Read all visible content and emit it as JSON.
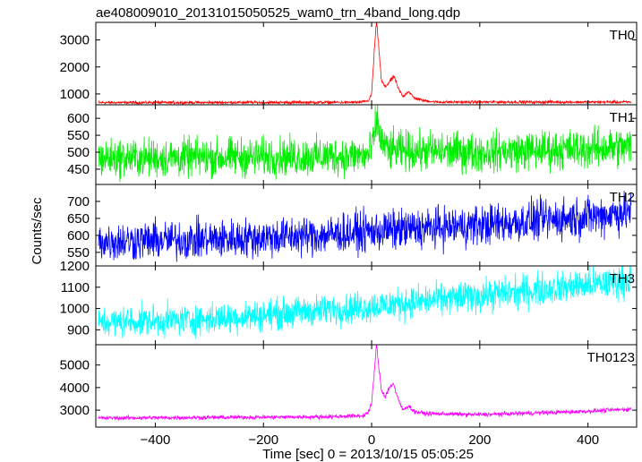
{
  "chart_data": {
    "type": "line",
    "title": "ae408009010_20131015050525_wam0_trn_4band_long.qdp",
    "xlabel": "Time [sec] 0 = 2013/10/15 05:05:25",
    "ylabel": "Counts/sec",
    "xlim": [
      -510,
      490
    ],
    "x_ticks": [
      -400,
      -200,
      0,
      200,
      400
    ],
    "x_tick_labels": [
      "−400",
      "−200",
      "0",
      "200",
      "400"
    ],
    "legend": "none",
    "grid": false,
    "panels": [
      {
        "name": "TH0",
        "color": "#ff0000",
        "ylim": [
          600,
          3650
        ],
        "y_ticks": [
          1000,
          2000,
          3000
        ],
        "y_tick_labels": [
          "1000",
          "2000",
          "3000"
        ],
        "profile": [
          [
            -505,
            680
          ],
          [
            -20,
            690
          ],
          [
            -5,
            760
          ],
          [
            0,
            1000
          ],
          [
            5,
            2600
          ],
          [
            9,
            3700
          ],
          [
            13,
            2800
          ],
          [
            18,
            1500
          ],
          [
            25,
            1250
          ],
          [
            35,
            1500
          ],
          [
            42,
            1650
          ],
          [
            48,
            1250
          ],
          [
            58,
            900
          ],
          [
            68,
            1100
          ],
          [
            78,
            860
          ],
          [
            95,
            760
          ],
          [
            120,
            700
          ],
          [
            480,
            700
          ]
        ],
        "noise": 25
      },
      {
        "name": "TH1",
        "color": "#00ee00",
        "ylim": [
          405,
          640
        ],
        "y_ticks": [
          450,
          500,
          550,
          600
        ],
        "y_tick_labels": [
          "450",
          "500",
          "550",
          "600"
        ],
        "profile": [
          [
            -505,
            482
          ],
          [
            -200,
            486
          ],
          [
            -5,
            490
          ],
          [
            5,
            545
          ],
          [
            10,
            600
          ],
          [
            16,
            540
          ],
          [
            30,
            505
          ],
          [
            200,
            500
          ],
          [
            480,
            515
          ]
        ],
        "noise": 28
      },
      {
        "name": "TH2",
        "color": "#0000ff",
        "ylim": [
          510,
          750
        ],
        "y_ticks": [
          550,
          600,
          650,
          700
        ],
        "y_tick_labels": [
          "550",
          "600",
          "650",
          "700"
        ],
        "profile": [
          [
            -505,
            582
          ],
          [
            -300,
            588
          ],
          [
            -100,
            600
          ],
          [
            0,
            612
          ],
          [
            200,
            630
          ],
          [
            400,
            655
          ],
          [
            480,
            670
          ]
        ],
        "noise": 28
      },
      {
        "name": "TH3",
        "color": "#00ffff",
        "ylim": [
          830,
          1200
        ],
        "y_ticks": [
          900,
          1000,
          1100,
          1200
        ],
        "y_tick_labels": [
          "900",
          "1000",
          "1100",
          "1200"
        ],
        "profile": [
          [
            -505,
            935
          ],
          [
            -300,
            950
          ],
          [
            -100,
            990
          ],
          [
            0,
            1010
          ],
          [
            200,
            1060
          ],
          [
            400,
            1110
          ],
          [
            480,
            1135
          ]
        ],
        "noise": 35
      },
      {
        "name": "TH0123",
        "color": "#ff00ff",
        "ylim": [
          2250,
          5900
        ],
        "y_ticks": [
          3000,
          4000,
          5000
        ],
        "y_tick_labels": [
          "3000",
          "4000",
          "5000"
        ],
        "profile": [
          [
            -505,
            2650
          ],
          [
            -100,
            2700
          ],
          [
            -15,
            2750
          ],
          [
            -5,
            2950
          ],
          [
            0,
            3300
          ],
          [
            5,
            4700
          ],
          [
            9,
            5900
          ],
          [
            13,
            5000
          ],
          [
            18,
            3900
          ],
          [
            25,
            3600
          ],
          [
            33,
            4000
          ],
          [
            40,
            4200
          ],
          [
            47,
            3600
          ],
          [
            58,
            3000
          ],
          [
            68,
            3200
          ],
          [
            78,
            2950
          ],
          [
            100,
            2850
          ],
          [
            200,
            2800
          ],
          [
            400,
            2950
          ],
          [
            480,
            3050
          ]
        ],
        "noise": 45
      }
    ]
  }
}
